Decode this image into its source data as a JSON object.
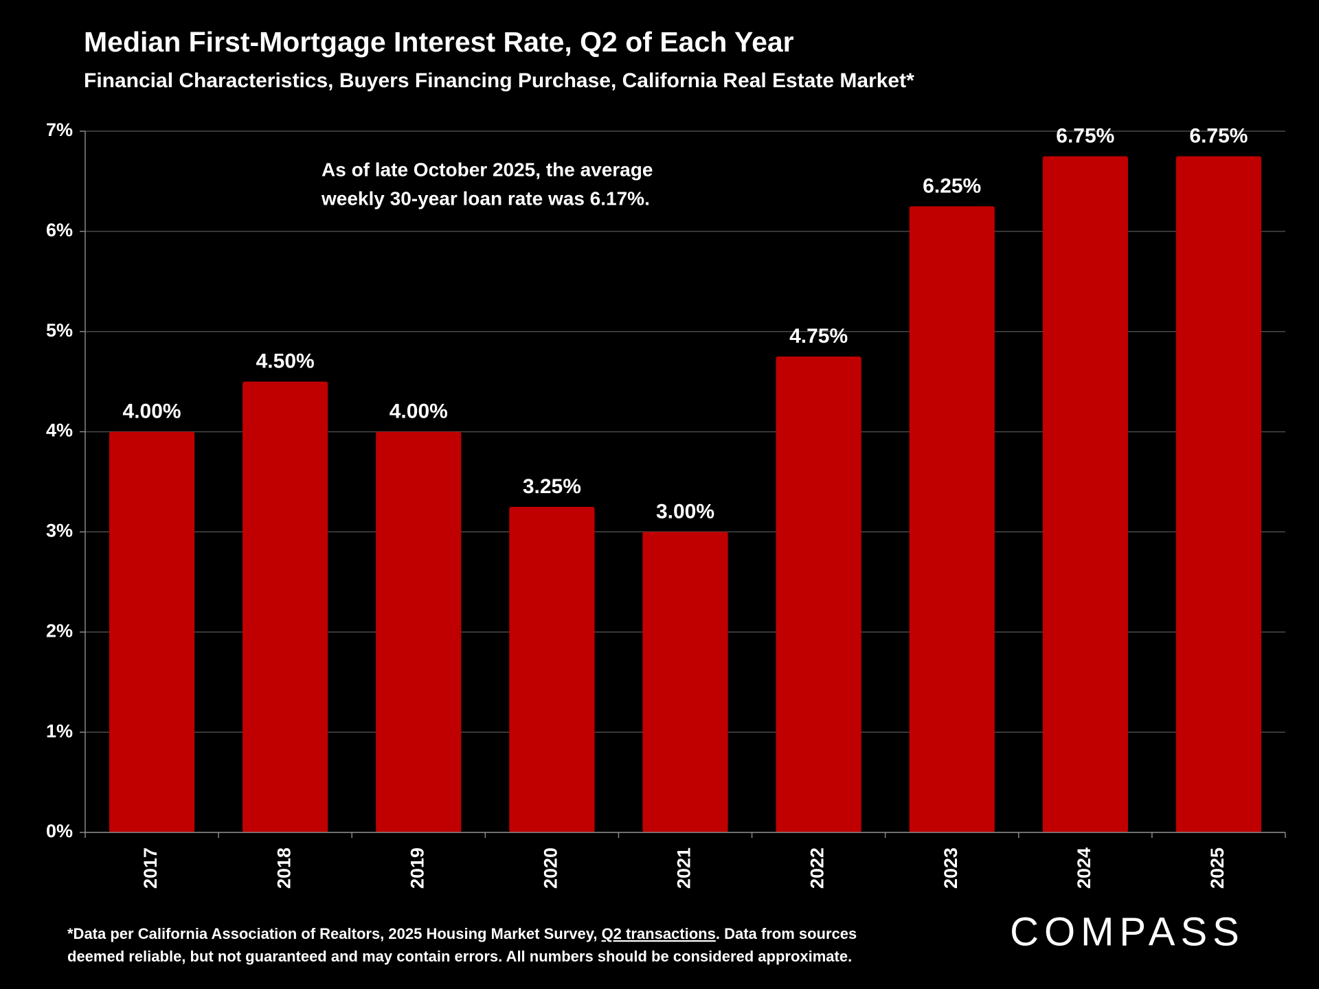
{
  "chart_data": {
    "type": "bar",
    "title": "Median First-Mortgage Interest Rate, Q2 of Each Year",
    "subtitle": "Financial Characteristics, Buyers Financing Purchase, California Real Estate Market*",
    "annotation": [
      "As of late October 2025, the average",
      "weekly 30-year loan rate was 6.17%."
    ],
    "categories": [
      "2017",
      "2018",
      "2019",
      "2020",
      "2021",
      "2022",
      "2023",
      "2024",
      "2025"
    ],
    "values": [
      4.0,
      4.5,
      4.0,
      3.25,
      3.0,
      4.75,
      6.25,
      6.75,
      6.75
    ],
    "value_labels": [
      "4.00%",
      "4.50%",
      "4.00%",
      "3.25%",
      "3.00%",
      "4.75%",
      "6.25%",
      "6.75%",
      "6.75%"
    ],
    "color": "#c00000",
    "ylim": [
      0,
      7
    ],
    "yticks": [
      {
        "value": 0,
        "label": "0%"
      },
      {
        "value": 1,
        "label": "1%"
      },
      {
        "value": 2,
        "label": "2%"
      },
      {
        "value": 3,
        "label": "3%"
      },
      {
        "value": 4,
        "label": "4%"
      },
      {
        "value": 5,
        "label": "5%"
      },
      {
        "value": 6,
        "label": "6%"
      },
      {
        "value": 7,
        "label": "7%"
      }
    ],
    "grid": true,
    "footnote": [
      [
        "*Data per California Association of Realtors, 2025 Housing Market Survey, ",
        "Q2 transactions",
        ". Data from sources"
      ],
      [
        "deemed reliable, but not guaranteed and may contain errors. All numbers should be considered approximate."
      ]
    ],
    "logo": "COMPASS"
  }
}
